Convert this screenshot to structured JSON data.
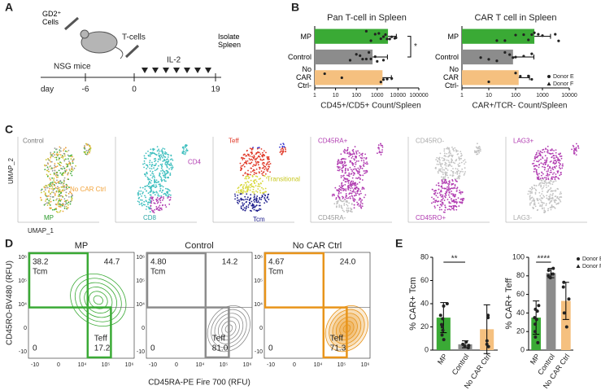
{
  "panels": {
    "a": "A",
    "b": "B",
    "c": "C",
    "d": "D",
    "e": "E"
  },
  "schematic": {
    "cells": "GD2⁺ Cells",
    "tcells": "T-cells",
    "mice": "NSG mice",
    "il2": "IL-2",
    "isolate": "Isolate Spleen",
    "day": "day",
    "days": [
      "-6",
      "0",
      "19"
    ]
  },
  "chart_data": [
    {
      "type": "hbar",
      "title": "Pan T-cell in Spleen",
      "categories": [
        "MP",
        "Control",
        "No CAR Ctrl-"
      ],
      "values": [
        3300,
        600,
        1800
      ],
      "errors": [
        5000,
        2500,
        3000
      ],
      "points": [
        [
          300,
          500,
          800,
          1200,
          1500,
          2000,
          2500,
          3000,
          4000,
          5000,
          7000,
          8000
        ],
        [
          50,
          100,
          150,
          200,
          300,
          400,
          500,
          800,
          1000,
          2000
        ],
        [
          3,
          20,
          1500,
          2000,
          3000,
          5000
        ]
      ],
      "colors": [
        "#3aaa35",
        "#8c8c8c",
        "#f5c07f"
      ],
      "log_x": true,
      "xlim": [
        1,
        100000
      ],
      "xticks": [
        1,
        10,
        100,
        1000,
        10000,
        100000
      ],
      "xlabel": "CD45+/CD5+ Count/Spleen",
      "annotation": "*"
    },
    {
      "type": "hbar",
      "title": "CAR T cell in Spleen",
      "categories": [
        "MP",
        "Control",
        "No CAR Ctrl-"
      ],
      "values": [
        500,
        80,
        130
      ],
      "errors": [
        1500,
        400,
        200
      ],
      "points": [
        [
          20,
          40,
          100,
          200,
          300,
          400,
          500,
          700,
          1000,
          3000,
          4000
        ],
        [
          5,
          10,
          20,
          40,
          60,
          80,
          100,
          200,
          400
        ],
        [
          10,
          100,
          150,
          300,
          400
        ]
      ],
      "colors": [
        "#3aaa35",
        "#8c8c8c",
        "#f5c07f"
      ],
      "log_x": true,
      "xlim": [
        1,
        10000
      ],
      "xticks": [
        1,
        10,
        100,
        1000,
        10000
      ],
      "xlabel": "CAR+/TCR- Count/Spleen",
      "legend": "lower right",
      "legend_labels": [
        "Donor E",
        "Donor F"
      ]
    },
    {
      "type": "vbar",
      "ylabel": "% CAR+ Tcm",
      "categories": [
        "MP",
        "Control",
        "No CAR Ctrl"
      ],
      "values": [
        28,
        5,
        18
      ],
      "errors": [
        13,
        3,
        21
      ],
      "points": [
        [
          40,
          38,
          30,
          27,
          22,
          20,
          17,
          13,
          9
        ],
        [
          7,
          5,
          4,
          3,
          2
        ],
        [
          30,
          28,
          8,
          5,
          3
        ]
      ],
      "colors": [
        "#3aaa35",
        "#8c8c8c",
        "#f5c07f"
      ],
      "ylim": [
        0,
        80
      ],
      "yticks": [
        0,
        20,
        40,
        60,
        80
      ],
      "annotation": "**"
    },
    {
      "type": "vbar",
      "ylabel": "% CAR+ Teff",
      "categories": [
        "MP",
        "Control",
        "No CAR Ctrl"
      ],
      "values": [
        35,
        83,
        53
      ],
      "errors": [
        18,
        5,
        20
      ],
      "points": [
        [
          48,
          44,
          42,
          35,
          33,
          28,
          20,
          14,
          8
        ],
        [
          88,
          86,
          82,
          80,
          78
        ],
        [
          73,
          68,
          55,
          40,
          25
        ]
      ],
      "colors": [
        "#3aaa35",
        "#8c8c8c",
        "#f5c07f"
      ],
      "ylim": [
        0,
        100
      ],
      "yticks": [
        0,
        20,
        40,
        60,
        80,
        100
      ],
      "annotation": "****",
      "legend": "upper right",
      "legend_labels": [
        "Donor E",
        "Donor F"
      ]
    }
  ],
  "umap": {
    "y_label": "UMAP_2",
    "x_label": "UMAP_1",
    "panels": [
      {
        "labels": [
          "Control",
          "No CAR Ctrl",
          "MP"
        ]
      },
      {
        "labels": [
          "CD4",
          "CD8"
        ]
      },
      {
        "labels": [
          "Teff",
          "Transitional",
          "Tcm"
        ]
      },
      {
        "labels": [
          "CD45RA+",
          "CD45RA-"
        ]
      },
      {
        "labels": [
          "CD45RO-",
          "CD45RO+"
        ]
      },
      {
        "labels": [
          "LAG3+",
          "LAG3-"
        ]
      }
    ]
  },
  "flow": {
    "y_label": "CD45RO-BV480 (RFU)",
    "x_label": "CD45RA-PE Fire 700 (RFU)",
    "x_ticks": [
      "-10",
      "0",
      "10⁴",
      "10⁵",
      "10⁶"
    ],
    "y_ticks": [
      "-10",
      "0",
      "10⁴",
      "10⁵",
      "10⁶"
    ],
    "tcm": "Tcm",
    "teff": "Teff",
    "plots": [
      {
        "title": "MP",
        "color": "#3aaa35",
        "quadrants": [
          "38.2",
          "44.7",
          "0",
          "17.2"
        ]
      },
      {
        "title": "Control",
        "color": "#8c8c8c",
        "quadrants": [
          "4.80",
          "14.2",
          "0",
          "81.0"
        ]
      },
      {
        "title": "No CAR Ctrl",
        "color": "#e8941a",
        "quadrants": [
          "4.67",
          "24.0",
          "0",
          "71.3"
        ]
      }
    ]
  }
}
